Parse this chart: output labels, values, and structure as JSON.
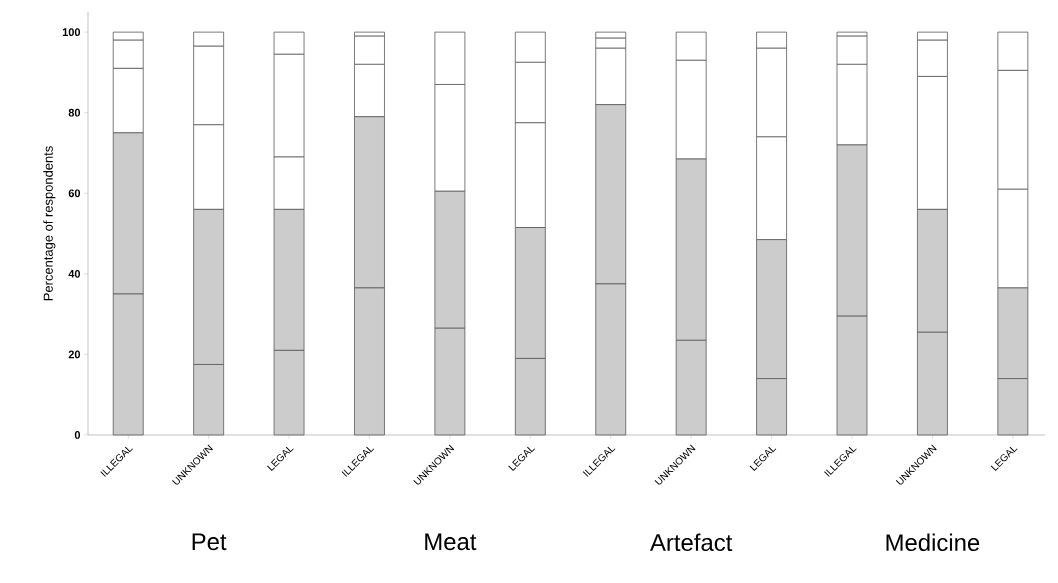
{
  "chart_data": {
    "type": "bar",
    "stacked": true,
    "ylabel": "Percentage of respondents",
    "categories": [
      "ILLEGAL",
      "UNKNOWN",
      "LEGAL",
      "ILLEGAL",
      "UNKNOWN",
      "LEGAL",
      "ILLEGAL",
      "UNKNOWN",
      "LEGAL",
      "ILLEGAL",
      "UNKNOWN",
      "LEGAL"
    ],
    "series": [
      {
        "color": "#cccccc",
        "values": [
          35,
          17.5,
          21,
          36.5,
          26.5,
          19,
          37.5,
          23.5,
          14,
          29.5,
          25.5,
          14
        ]
      },
      {
        "color": "#cccccc",
        "values": [
          40,
          38.5,
          35,
          42.5,
          34,
          32.5,
          44.5,
          45,
          34.5,
          42.5,
          30.5,
          22.5
        ]
      },
      {
        "color": "#ffffff",
        "values": [
          16,
          21,
          13,
          13,
          26.5,
          26,
          14,
          24.5,
          25.5,
          20,
          33,
          24.5
        ]
      },
      {
        "color": "#ffffff",
        "values": [
          7,
          19.5,
          25.5,
          7,
          13,
          15,
          2.5,
          7,
          22,
          7,
          9,
          29.5
        ]
      },
      {
        "color": "#ffffff",
        "values": [
          2,
          3.5,
          5.5,
          1,
          0,
          7.5,
          1.5,
          0,
          4,
          1,
          2,
          9.5
        ]
      }
    ],
    "ylim": [
      0,
      105
    ],
    "yticks": [
      0,
      20,
      40,
      60,
      80,
      100
    ],
    "annotations": [
      "Pet",
      "Meat",
      "Artefact",
      "Medicine"
    ]
  }
}
